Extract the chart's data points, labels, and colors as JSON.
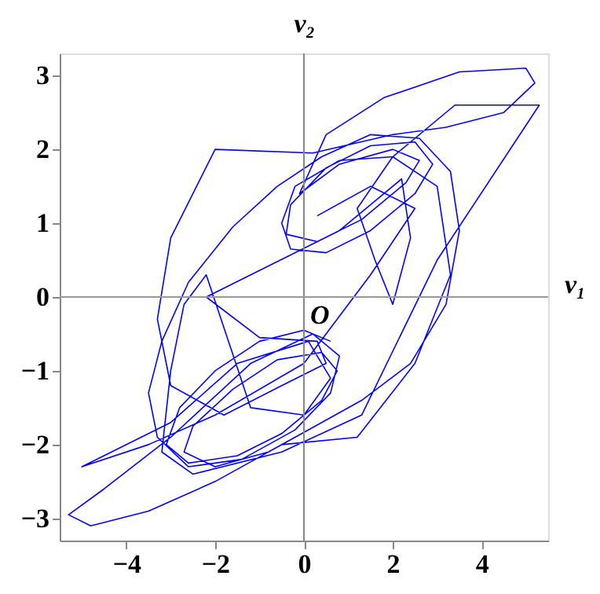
{
  "chart_data": {
    "type": "line",
    "x": [
      0.6,
      0,
      -1,
      -2,
      -2.8,
      -3.1,
      -2.6,
      -1.5,
      -0.5,
      0.4,
      0.75,
      0.4,
      -0.6,
      -1.6,
      -2.5,
      -2.7,
      -2,
      -0.8,
      0.4,
      1.3,
      2.4,
      3.2,
      3.5,
      3.3,
      2.6,
      1.5,
      0.4,
      -0.6,
      -1.6,
      -2.6,
      -3.2,
      -3.5,
      -3.3,
      -2.6,
      -1.4,
      -0.2,
      0.6,
      0.8,
      0.2,
      -1.2,
      -3,
      -4.5,
      -5.3,
      -4.8,
      -3.5,
      -2,
      -0.5,
      1.2,
      2.5,
      3.3,
      3,
      2,
      0.8,
      -0.2,
      -0.5,
      -0.3,
      0.5,
      1.5,
      2.5,
      2.9,
      2.5,
      1.5,
      0.5,
      -0.3,
      -0.4,
      0.3,
      1.3,
      2.3,
      2.6,
      2,
      0.8,
      -0.1,
      0.5,
      1.8,
      3.5,
      5,
      5.2,
      4.5,
      3.2,
      2,
      0.2,
      -2,
      -3,
      -3.3,
      -3,
      -1.8,
      -0.5,
      0.5,
      0.3,
      -1,
      -2.2,
      0.8,
      2.2,
      2.4,
      2,
      1.6,
      1.2,
      2,
      3.4,
      5.3,
      3,
      1.3,
      -0.5,
      -2.5,
      -3.2,
      -3,
      -2.7,
      -2.2,
      -1.7,
      -1.2,
      0,
      0.6,
      0.1,
      -1.5,
      -3,
      -5,
      -3.5,
      -2,
      0,
      1.5,
      2.5,
      1.5,
      0.3
    ],
    "series": [
      {
        "color": "#0000ff",
        "values": [
          -0.6,
          -0.45,
          -0.6,
          -1,
          -1.5,
          -2,
          -2.25,
          -2.15,
          -1.85,
          -1.4,
          -1,
          -0.75,
          -0.85,
          -1.25,
          -1.75,
          -2.1,
          -2.3,
          -2.1,
          -1.7,
          -1.4,
          -0.9,
          -0.1,
          0.9,
          1.7,
          2.15,
          2.2,
          1.9,
          1.5,
          0.95,
          0.2,
          -0.6,
          -1.3,
          -1.9,
          -2.3,
          -2.2,
          -1.8,
          -1.3,
          -0.8,
          -0.5,
          -0.9,
          -1.9,
          -2.6,
          -2.95,
          -3.1,
          -2.9,
          -2.5,
          -2,
          -1.9,
          -0.9,
          0.3,
          1.5,
          1.9,
          1.85,
          1.5,
          1,
          0.65,
          0.6,
          0.9,
          1.4,
          1.8,
          2.1,
          2.05,
          1.75,
          1.25,
          0.85,
          0.75,
          1.05,
          1.55,
          1.85,
          2,
          1.8,
          1.4,
          2.2,
          2.7,
          3.05,
          3.1,
          2.9,
          2.5,
          2.3,
          2.2,
          1.95,
          2,
          0.8,
          -0.3,
          -1.2,
          -1.6,
          -1.2,
          -0.9,
          -0.6,
          -0.55,
          0,
          0.9,
          1.6,
          0.8,
          -0.1,
          0.5,
          1.2,
          1.9,
          2.6,
          2.6,
          0.5,
          -1.6,
          -2.1,
          -2.4,
          -2.1,
          -1,
          -0.1,
          0.3,
          -0.6,
          -1.5,
          -1.6,
          -1.1,
          -0.6,
          -0.9,
          -1.7,
          -2.3,
          -2,
          -1.6,
          -0.9,
          0.3,
          1.2,
          1.5,
          1.1
        ]
      }
    ],
    "xlim": [
      -5.5,
      5.5
    ],
    "ylim": [
      -3.3,
      3.3
    ],
    "xticks": [
      -4,
      -2,
      0,
      2,
      4
    ],
    "yticks": [
      -3,
      -2,
      -1,
      0,
      1,
      2,
      3
    ],
    "xlabel": "v₁",
    "ylabel": "v₂",
    "annotations": [
      {
        "text": "O",
        "x": 0,
        "y": 0
      }
    ],
    "ref_lines": [
      {
        "axis": "x",
        "value": 0,
        "color": "#888888"
      },
      {
        "axis": "y",
        "value": 0,
        "color": "#999999"
      }
    ],
    "grid": false
  }
}
